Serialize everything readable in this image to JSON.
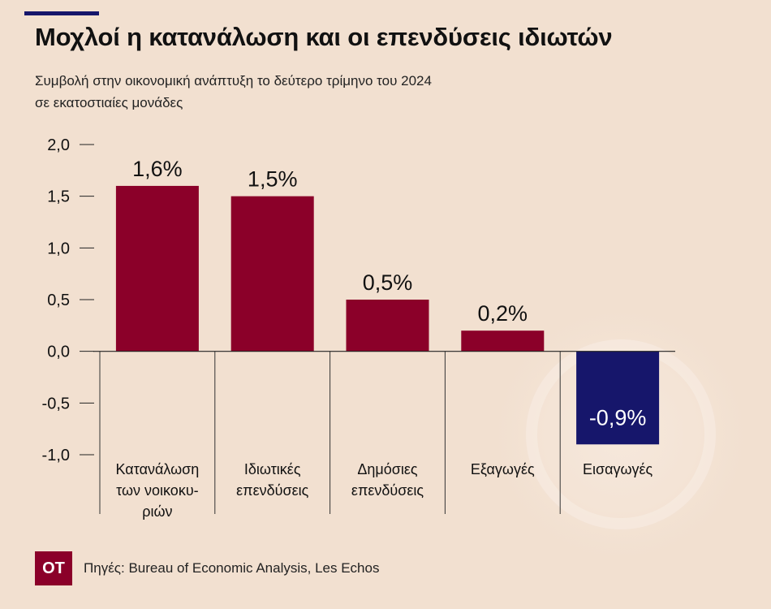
{
  "header": {
    "title": "Μοχλοί η κατανάλωση και οι επενδύσεις ιδιωτών",
    "subtitle_line1": "Συμβολή στην οικονομική ανάπτυξη το δεύτερο τρίμηνο του 2024",
    "subtitle_line2": "σε εκατοστιαίες μονάδες"
  },
  "footer": {
    "logo_text": "ΟΤ",
    "source": "Πηγές: Bureau of Economic Analysis, Les Echos"
  },
  "colors": {
    "background": "#f2e0d0",
    "positive_bar": "#8b0029",
    "negative_bar": "#16166b",
    "accent": "#16166b"
  },
  "chart_data": {
    "type": "bar",
    "categories": [
      [
        "Κατανάλωση",
        "των νοικοκυ-",
        "ριών"
      ],
      [
        "Ιδιωτικές",
        "επενδύσεις"
      ],
      [
        "Δημόσιες",
        "επενδύσεις"
      ],
      [
        "Εξαγωγές"
      ],
      [
        "Εισαγωγές"
      ]
    ],
    "values": [
      1.6,
      1.5,
      0.5,
      0.2,
      -0.9
    ],
    "data_labels": [
      "1,6%",
      "1,5%",
      "0,5%",
      "0,2%",
      "-0,9%"
    ],
    "ylim": [
      -1.0,
      2.0
    ],
    "yticks": [
      2.0,
      1.5,
      1.0,
      0.5,
      0.0,
      -0.5,
      -1.0
    ],
    "ytick_labels": [
      "2,0",
      "1,5",
      "1,0",
      "0,5",
      "0,0",
      "-0,5",
      "-1,0"
    ],
    "grid": false,
    "legend": "none"
  }
}
